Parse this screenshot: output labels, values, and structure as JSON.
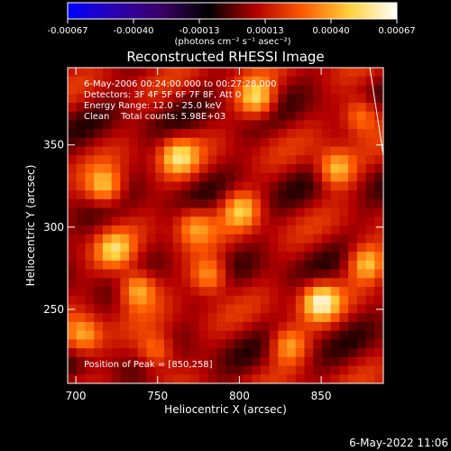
{
  "colorbar": {
    "tick_labels": [
      "-0.00067",
      "-0.00040",
      "-0.00013",
      "0.00013",
      "0.00040",
      "0.00067"
    ],
    "unit_label": "(photons cm⁻² s⁻¹ asec⁻²)",
    "colors": [
      "#0000ff",
      "#2b00b0",
      "#3c0066",
      "#000000",
      "#b40000",
      "#ff5a00",
      "#ffd23c",
      "#ffffff"
    ]
  },
  "image_title": "Reconstructed RHESSI Image",
  "annotations": {
    "time_range": "6-May-2006 00:24:00.000 to 00:27:28.000",
    "detectors": "Detectors: 3F 4F 5F 6F 7F 8F, Att 0",
    "energy_range": "Energy Range: 12.0 - 25.0 keV",
    "algorithm": "Clean    Total counts: 5.98E+03",
    "peak_position": "Position of Peak = [850,258]"
  },
  "footer_timestamp": "6-May-2022 11:06",
  "chart_data": {
    "type": "heatmap",
    "title": "Reconstructed RHESSI Image",
    "xlabel": "Heliocentric X (arcsec)",
    "ylabel": "Heliocentric Y (arcsec)",
    "xlim": [
      695,
      888
    ],
    "ylim": [
      205,
      397
    ],
    "x_ticks": [
      700,
      750,
      800,
      850
    ],
    "y_ticks": [
      250,
      300,
      350
    ],
    "colorbar_range": [
      -0.00067,
      0.00067
    ],
    "peak": {
      "x": 850,
      "y": 258
    }
  }
}
